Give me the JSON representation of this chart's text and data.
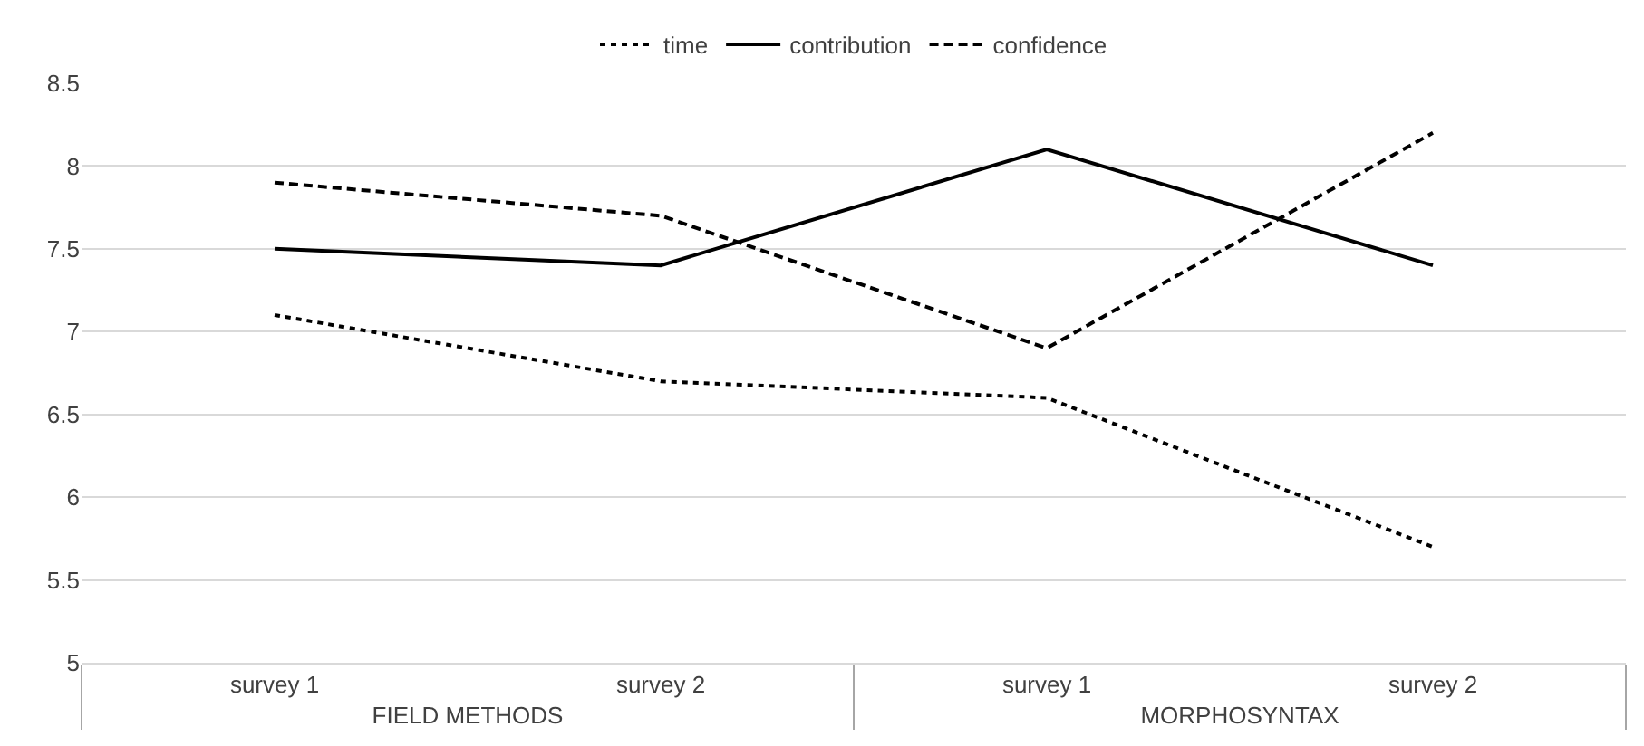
{
  "chart_data": {
    "type": "line",
    "categories": [
      "survey 1",
      "survey 2",
      "survey 1",
      "survey 2"
    ],
    "annotations": [
      "FIELD METHODS",
      "MORPHOSYNTAX"
    ],
    "series": [
      {
        "name": "time",
        "color": "#000000",
        "line_style": "dotted",
        "values": [
          7.1,
          6.7,
          6.6,
          5.7
        ]
      },
      {
        "name": "contribution",
        "color": "#000000",
        "line_style": "solid",
        "values": [
          7.5,
          7.4,
          8.1,
          7.4
        ]
      },
      {
        "name": "confidence",
        "color": "#000000",
        "line_style": "dashed",
        "values": [
          7.9,
          7.7,
          6.9,
          8.2
        ]
      }
    ],
    "ylim": [
      5,
      8.5
    ],
    "yticks": [
      5,
      5.5,
      6,
      6.5,
      7,
      7.5,
      8,
      8.5
    ],
    "grid": "y",
    "legend": "top",
    "marker": "none"
  }
}
